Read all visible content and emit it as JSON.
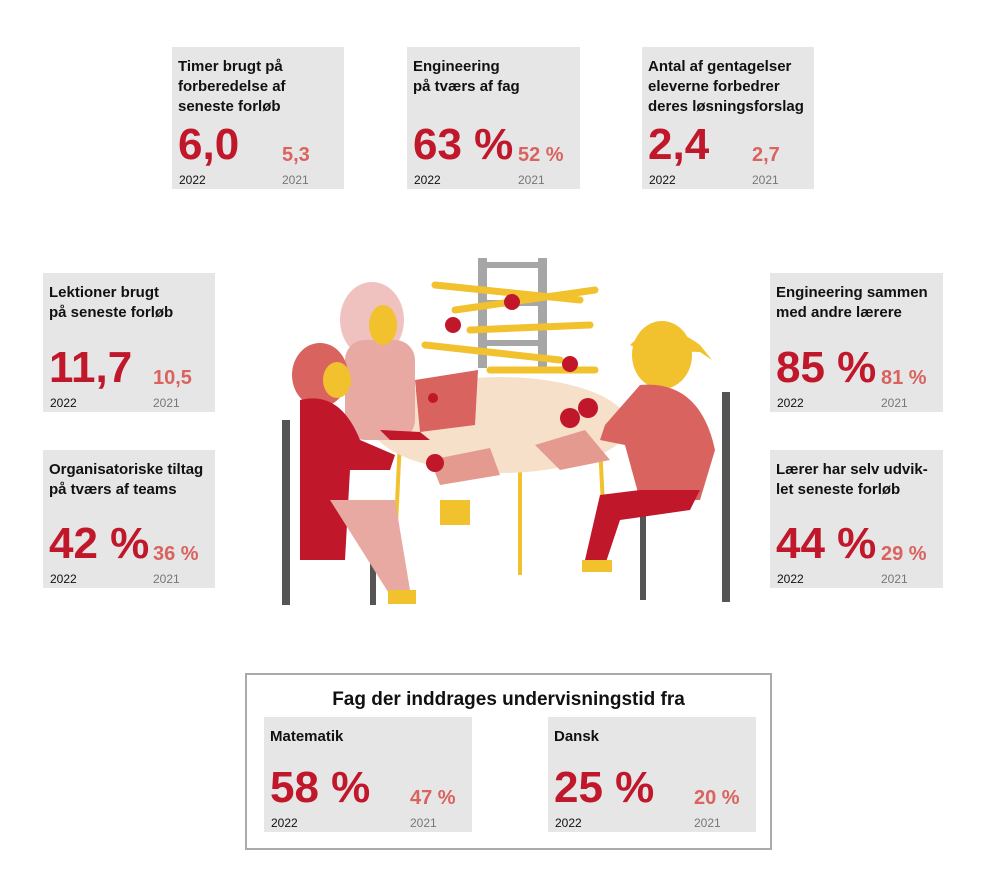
{
  "cards": [
    {
      "title": [
        "Timer brugt på",
        "forberedelse af",
        "seneste forløb"
      ],
      "current": {
        "value": "6,0",
        "year": "2022"
      },
      "previous": {
        "value": "5,3",
        "year": "2021"
      }
    },
    {
      "title": [
        "Engineering",
        "på tværs af fag"
      ],
      "current": {
        "value": "63 %",
        "year": "2022"
      },
      "previous": {
        "value": "52 %",
        "year": "2021"
      }
    },
    {
      "title": [
        "Antal af gentagelser",
        "eleverne forbedrer",
        "deres løsningsforslag"
      ],
      "current": {
        "value": "2,4",
        "year": "2022"
      },
      "previous": {
        "value": "2,7",
        "year": "2021"
      }
    },
    {
      "title": [
        "Lektioner brugt",
        "på seneste forløb"
      ],
      "current": {
        "value": "11,7",
        "year": "2022"
      },
      "previous": {
        "value": "10,5",
        "year": "2021"
      }
    },
    {
      "title": [
        "Organisatoriske tiltag",
        "på tværs af teams"
      ],
      "current": {
        "value": "42 %",
        "year": "2022"
      },
      "previous": {
        "value": "36 %",
        "year": "2021"
      }
    },
    {
      "title": [
        "Engineering sammen",
        "med andre lærere"
      ],
      "current": {
        "value": "85 %",
        "year": "2022"
      },
      "previous": {
        "value": "81 %",
        "year": "2021"
      }
    },
    {
      "title": [
        "Lærer har selv udvik-",
        "let seneste forløb"
      ],
      "current": {
        "value": "44 %",
        "year": "2022"
      },
      "previous": {
        "value": "29 %",
        "year": "2021"
      }
    }
  ],
  "subjects": {
    "title": "Fag der inddrages undervisningstid fra",
    "cards": [
      {
        "title": [
          "Matematik"
        ],
        "current": {
          "value": "58 %",
          "year": "2022"
        },
        "previous": {
          "value": "47 %",
          "year": "2021"
        }
      },
      {
        "title": [
          "Dansk"
        ],
        "current": {
          "value": "25 %",
          "year": "2022"
        },
        "previous": {
          "value": "20 %",
          "year": "2021"
        }
      }
    ]
  }
}
